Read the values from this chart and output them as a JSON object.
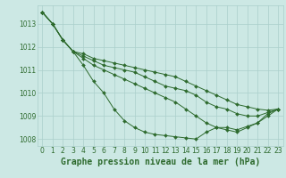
{
  "title": "Graphe pression niveau de la mer (hPa)",
  "xlabel_hours": [
    0,
    1,
    2,
    3,
    4,
    5,
    6,
    7,
    8,
    9,
    10,
    11,
    12,
    13,
    14,
    15,
    16,
    17,
    18,
    19,
    20,
    21,
    22,
    23
  ],
  "series": [
    [
      1013.5,
      1013.0,
      1012.3,
      1011.8,
      1011.2,
      1010.5,
      1010.0,
      1009.3,
      1008.8,
      1008.5,
      1008.3,
      1008.2,
      1008.15,
      1008.1,
      1008.05,
      1008.0,
      1008.3,
      1008.5,
      1008.4,
      1008.3,
      1008.5,
      1008.7,
      1009.1,
      1009.3
    ],
    [
      1013.5,
      1013.0,
      1012.3,
      1011.8,
      1011.5,
      1011.2,
      1011.0,
      1010.8,
      1010.6,
      1010.4,
      1010.2,
      1010.0,
      1009.8,
      1009.6,
      1009.3,
      1009.0,
      1008.7,
      1008.5,
      1008.5,
      1008.4,
      1008.55,
      1008.7,
      1009.0,
      1009.3
    ],
    [
      1013.5,
      1013.0,
      1012.3,
      1011.8,
      1011.6,
      1011.4,
      1011.2,
      1011.1,
      1011.0,
      1010.9,
      1010.7,
      1010.5,
      1010.3,
      1010.2,
      1010.1,
      1009.9,
      1009.6,
      1009.4,
      1009.3,
      1009.1,
      1009.0,
      1009.0,
      1009.15,
      1009.3
    ],
    [
      1013.5,
      1013.0,
      1012.3,
      1011.8,
      1011.7,
      1011.5,
      1011.4,
      1011.3,
      1011.2,
      1011.1,
      1011.0,
      1010.9,
      1010.8,
      1010.7,
      1010.5,
      1010.3,
      1010.1,
      1009.9,
      1009.7,
      1009.5,
      1009.4,
      1009.3,
      1009.25,
      1009.3
    ]
  ],
  "line_color": "#2d6a2d",
  "marker_color": "#2d6a2d",
  "bg_color": "#cce8e4",
  "grid_color": "#aacfcb",
  "text_color": "#2d6a2d",
  "ylim": [
    1007.7,
    1013.8
  ],
  "yticks": [
    1008,
    1009,
    1010,
    1011,
    1012,
    1013
  ],
  "title_fontsize": 7,
  "tick_fontsize": 5.5
}
